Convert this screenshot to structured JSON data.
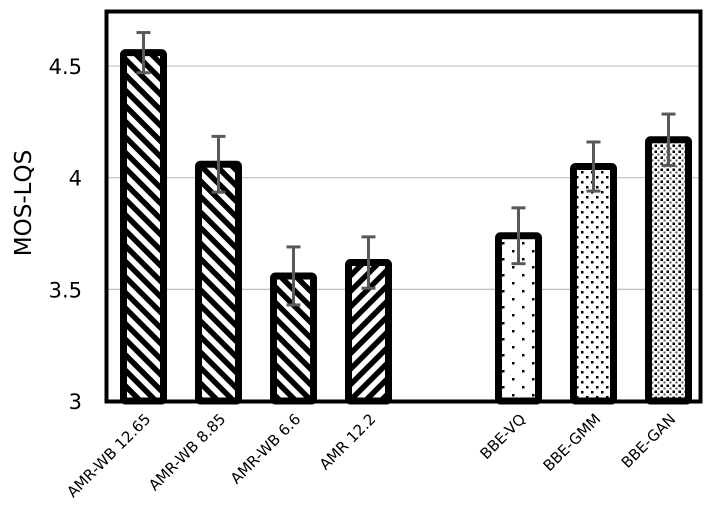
{
  "chart_data": {
    "type": "bar",
    "title": "",
    "xlabel": "",
    "ylabel": "MOS-LQS",
    "ylim": [
      3,
      4.7
    ],
    "yticks": [
      3,
      3.5,
      4,
      4.5
    ],
    "ytick_labels": [
      "3",
      "3.5",
      "4",
      "4.5"
    ],
    "grid": true,
    "legend": null,
    "categories": [
      "AMR-WB 12.65",
      "AMR-WB 8.85",
      "AMR-WB 6.6",
      "AMR 12.2",
      "",
      "BBE-VQ",
      "BBE-GMM",
      "BBE-GAN"
    ],
    "values": [
      4.56,
      4.06,
      3.56,
      3.62,
      null,
      3.74,
      4.05,
      4.17
    ],
    "error": [
      0.09,
      0.125,
      0.13,
      0.115,
      null,
      0.125,
      0.11,
      0.115
    ],
    "patterns": [
      "hatch-back",
      "hatch-back",
      "hatch-back",
      "hatch-fwd",
      null,
      "dots-sparse",
      "dots-medium",
      "dots-dense"
    ]
  },
  "colors": {
    "bar_border": "#000000",
    "bar_pattern": "#000000",
    "error_bar": "#595959",
    "gridline": "#bfbfbf",
    "frame": "#000000"
  }
}
